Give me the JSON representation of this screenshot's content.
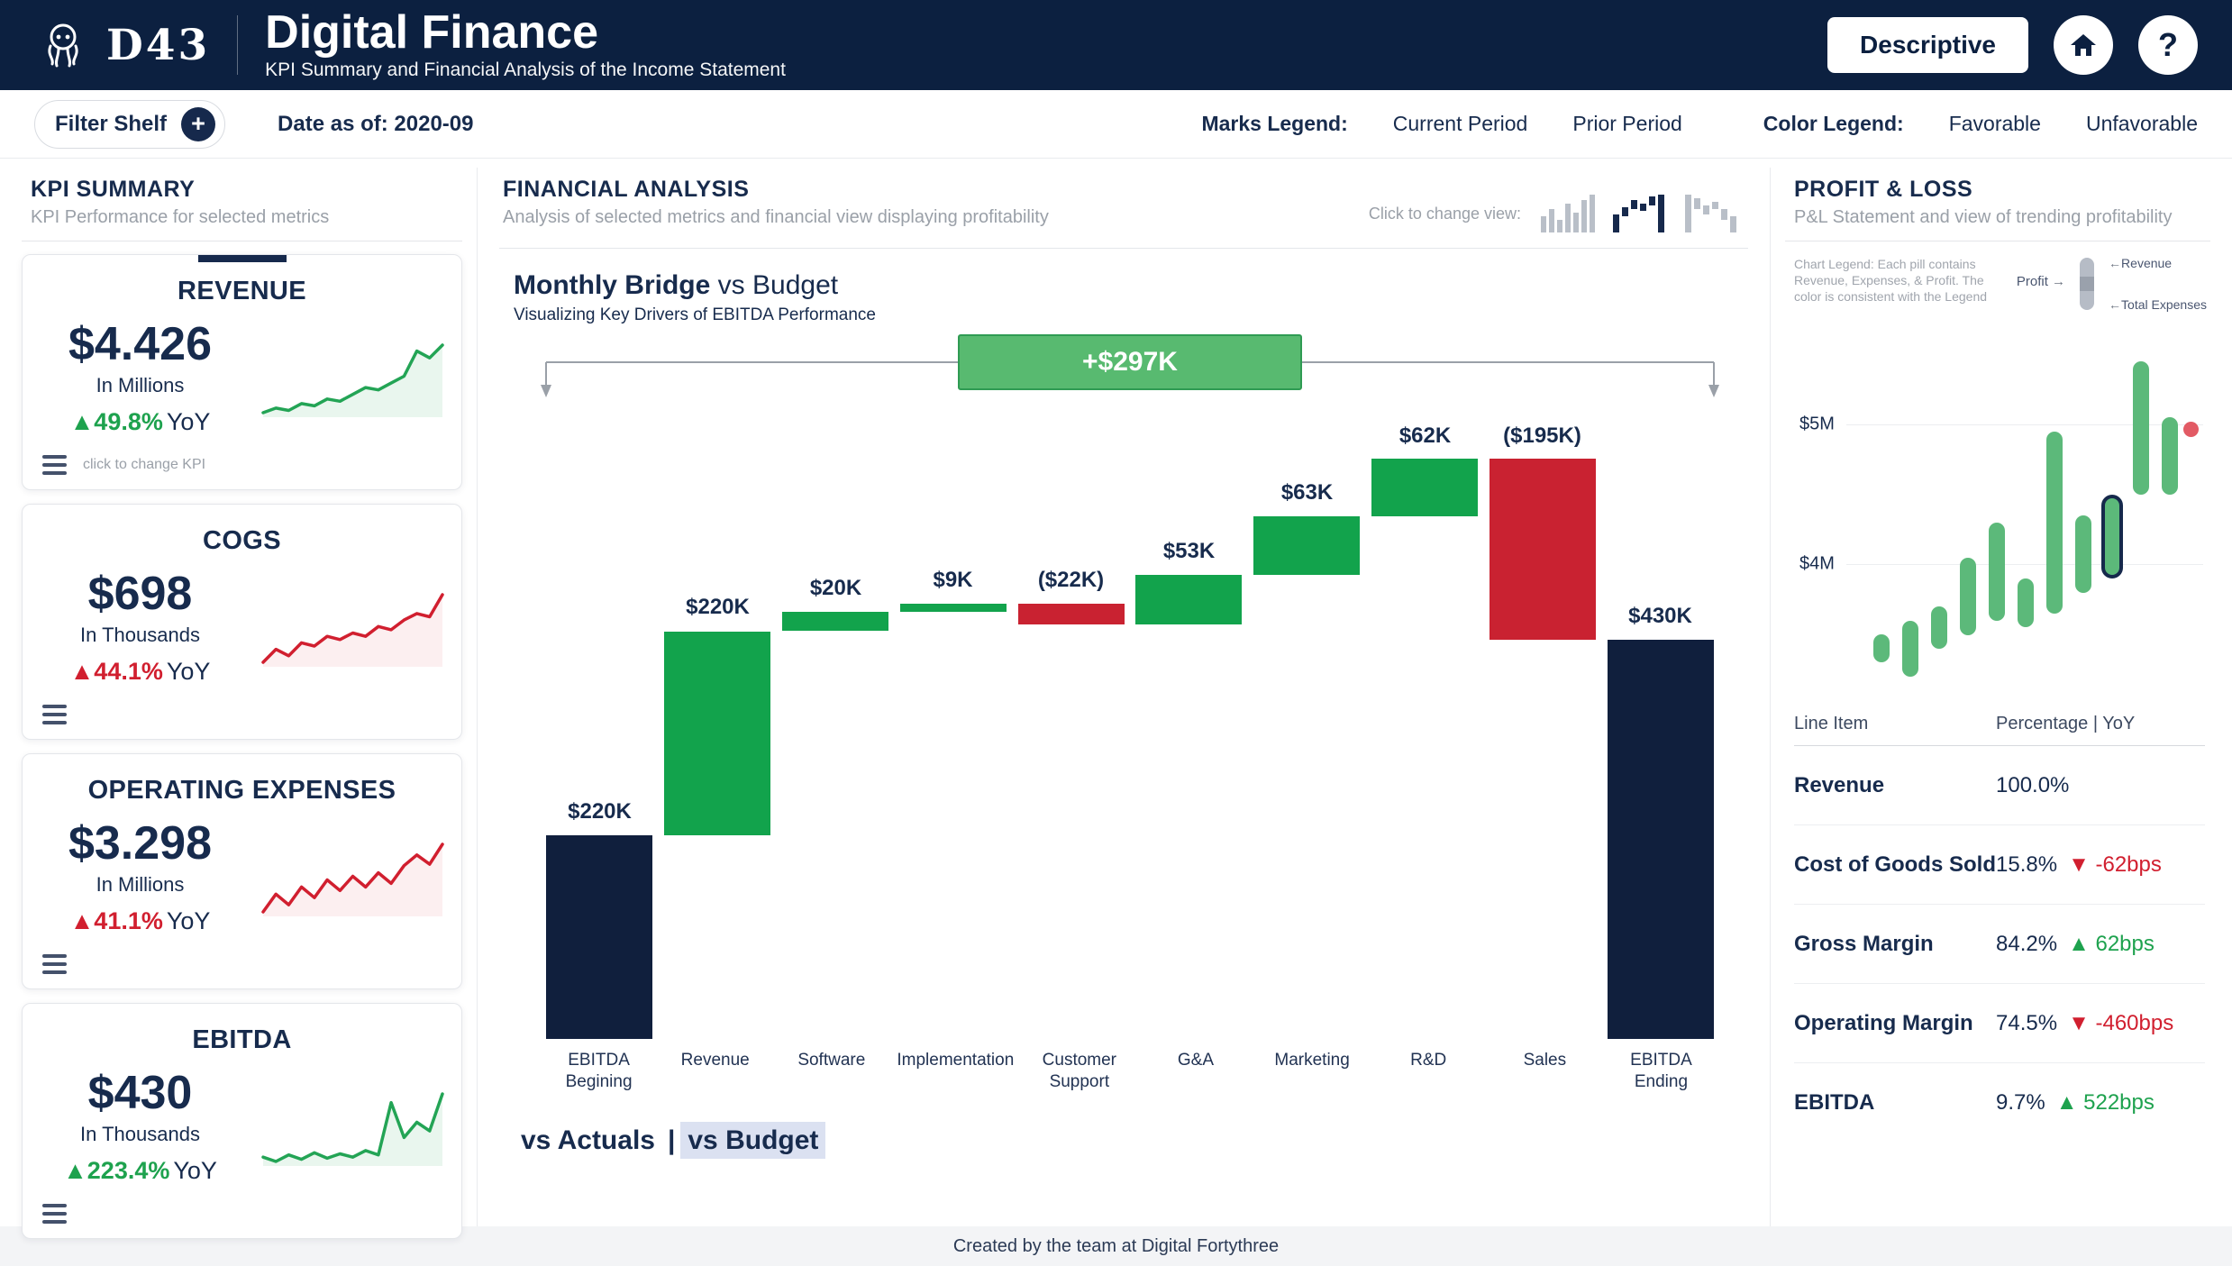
{
  "icons": {
    "plus": "+",
    "question": "?",
    "left_arrow": "←",
    "right_arrow": "→"
  },
  "header": {
    "logo_text": "D43",
    "title": "Digital Finance",
    "subtitle": "KPI Summary and Financial Analysis of the Income Statement",
    "mode_button": "Descriptive"
  },
  "filter_bar": {
    "filter_shelf_label": "Filter Shelf",
    "date_label": "Date as of: 2020-09",
    "marks_legend_label": "Marks Legend:",
    "marks": [
      {
        "label": "Current Period",
        "color": "#14294b"
      },
      {
        "label": "Prior Period",
        "color": "#a6adb8"
      }
    ],
    "color_legend_label": "Color Legend:",
    "colors": [
      {
        "label": "Favorable",
        "color": "#3fba64"
      },
      {
        "label": "Unfavorable",
        "color": "#e25a64"
      }
    ]
  },
  "kpi_panel": {
    "title": "KPI SUMMARY",
    "subtitle": "KPI Performance for selected metrics",
    "hint": "click to change KPI",
    "cards": [
      {
        "name": "REVENUE",
        "value": "$4.426",
        "unit": "In Millions",
        "delta": "▲49.8%",
        "yoy": "YoY",
        "delta_color": "#1ea24e",
        "spark_color": "#23a455",
        "spark_fill": "rgba(35,164,85,0.10)",
        "spark": [
          2.95,
          3.05,
          3.0,
          3.15,
          3.1,
          3.25,
          3.2,
          3.35,
          3.5,
          3.45,
          3.6,
          3.75,
          4.3,
          4.15,
          4.43
        ]
      },
      {
        "name": "COGS",
        "value": "$698",
        "unit": "In Thousands",
        "delta": "▲44.1%",
        "yoy": "YoY",
        "delta_color": "#d11f2f",
        "spark_color": "#d11f2f",
        "spark_fill": "rgba(209,31,47,0.07)",
        "spark": [
          4.9,
          5.3,
          5.1,
          5.5,
          5.4,
          5.7,
          5.6,
          5.8,
          5.7,
          6.0,
          5.9,
          6.2,
          6.4,
          6.3,
          6.98
        ]
      },
      {
        "name": "OPERATING EXPENSES",
        "value": "$3.298",
        "unit": "In Millions",
        "delta": "▲41.1%",
        "yoy": "YoY",
        "delta_color": "#d11f2f",
        "spark_color": "#d11f2f",
        "spark_fill": "rgba(209,31,47,0.07)",
        "spark": [
          2.35,
          2.6,
          2.45,
          2.7,
          2.55,
          2.8,
          2.65,
          2.85,
          2.7,
          2.9,
          2.75,
          3.0,
          3.15,
          3.02,
          3.3
        ]
      },
      {
        "name": "EBITDA",
        "value": "$430",
        "unit": "In Thousands",
        "delta": "▲223.4%",
        "yoy": "YoY",
        "delta_color": "#1ea24e",
        "spark_color": "#23a455",
        "spark_fill": "rgba(35,164,85,0.10)",
        "spark": [
          1.4,
          1.2,
          1.5,
          1.3,
          1.6,
          1.35,
          1.55,
          1.4,
          1.7,
          1.5,
          3.9,
          2.3,
          3.0,
          2.6,
          4.3
        ]
      }
    ]
  },
  "financial_panel": {
    "title": "FINANCIAL ANALYSIS",
    "subtitle": "Analysis of selected metrics and financial view displaying profitability",
    "view_hint": "Click to change view:",
    "chart_title_bold": "Monthly Bridge",
    "chart_title_rest": "vs Budget",
    "chart_subtitle": "Visualizing Key Drivers of EBITDA Performance",
    "footer_options": [
      {
        "label": "vs Actuals",
        "selected": false
      },
      {
        "label": "vs Budget",
        "selected": true
      }
    ],
    "footer_separator": "|"
  },
  "pl_panel": {
    "title": "PROFIT & LOSS",
    "subtitle": "P&L Statement and view of trending profitability",
    "chart_legend_note": "Chart Legend: Each pill contains Revenue, Expenses, & Profit. The color is consistent with the Legend",
    "profit_label": "Profit",
    "revenue_label": "Revenue",
    "expenses_label": "Total Expenses",
    "table": {
      "col1": "Line Item",
      "col2": "Percentage | YoY",
      "rows": [
        {
          "item": "Revenue",
          "pct": "100.0%",
          "delta": "",
          "delta_color": ""
        },
        {
          "item": "Cost of Goods Sold",
          "pct": "15.8%",
          "delta": "▼ -62bps",
          "delta_color": "#d11f2f"
        },
        {
          "item": "Gross Margin",
          "pct": "84.2%",
          "delta": "▲ 62bps",
          "delta_color": "#1ea24e"
        },
        {
          "item": "Operating Margin",
          "pct": "74.5%",
          "delta": "▼ -460bps",
          "delta_color": "#d11f2f"
        },
        {
          "item": "EBITDA",
          "pct": "9.7%",
          "delta": "▲ 522bps",
          "delta_color": "#1ea24e"
        }
      ]
    }
  },
  "footer": {
    "credit": "Created by the team at Digital Fortythree"
  },
  "chart_data": [
    {
      "id": "monthly-bridge-waterfall",
      "type": "bar",
      "subtype": "waterfall",
      "title": "Monthly Bridge vs Budget",
      "subtitle": "Visualizing Key Drivers of EBITDA Performance",
      "units": "thousands USD",
      "categories": [
        "EBITDA Begining",
        "Revenue",
        "Software",
        "Implementation",
        "Customer Support",
        "G&A",
        "Marketing",
        "R&D",
        "Sales",
        "EBITDA Ending"
      ],
      "values": [
        220,
        220,
        20,
        9,
        -22,
        53,
        63,
        62,
        -195,
        430
      ],
      "kinds": [
        "total",
        "delta",
        "delta",
        "delta",
        "delta",
        "delta",
        "delta",
        "delta",
        "delta",
        "total"
      ],
      "labels": [
        "$220K",
        "$220K",
        "$20K",
        "$9K",
        "($22K)",
        "$53K",
        "$63K",
        "$62K",
        "($195K)",
        "$430K"
      ],
      "bridge_total_label": "+$297K",
      "ylim": [
        0,
        680
      ],
      "grid": false,
      "colors": {
        "total": "#101f3d",
        "increase": "#12a34c",
        "decrease": "#c92231",
        "badge": "#58ba70",
        "badge_border": "#2f9b53"
      }
    },
    {
      "id": "pl-trend-pills",
      "type": "bar",
      "subtype": "floating-pills",
      "title": "P&L trending profitability",
      "ylabel_ticks": [
        "$5M",
        "$4M"
      ],
      "ytick_values": [
        5,
        4
      ],
      "ylim": [
        3.0,
        5.7
      ],
      "units": "millions USD",
      "pill_color": "#5cb97a",
      "highlight_border": "#16294c",
      "outlier": {
        "value": 4.97,
        "color": "#e25a64"
      },
      "pills": [
        {
          "low": 3.3,
          "high": 3.5
        },
        {
          "low": 3.2,
          "high": 3.6
        },
        {
          "low": 3.4,
          "high": 3.7
        },
        {
          "low": 3.5,
          "high": 4.05
        },
        {
          "low": 3.6,
          "high": 4.3
        },
        {
          "low": 3.55,
          "high": 3.9
        },
        {
          "low": 3.65,
          "high": 4.95
        },
        {
          "low": 3.8,
          "high": 4.35
        },
        {
          "low": 3.9,
          "high": 4.5,
          "highlight": true
        },
        {
          "low": 4.5,
          "high": 5.45
        },
        {
          "low": 4.5,
          "high": 5.05
        }
      ]
    }
  ]
}
